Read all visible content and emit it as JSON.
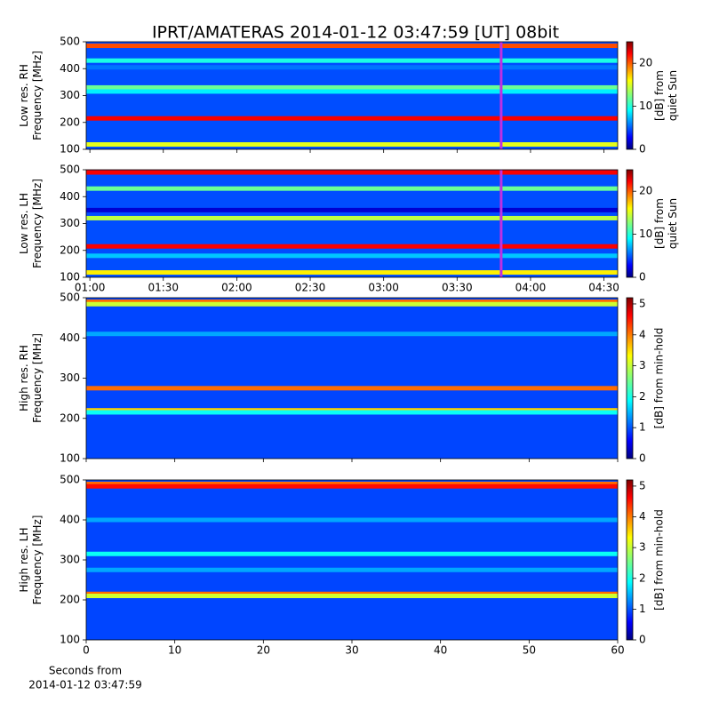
{
  "chart_data": [
    {
      "type": "spectrogram",
      "title": "IPRT/AMATERAS 2014-01-12 03:47:59 [UT]   08bit",
      "ylabel": [
        "Low res. RH",
        "Frequency [MHz]"
      ],
      "clabel": [
        "[dB] from",
        "quiet Sun"
      ],
      "xlim": [
        58.5,
        275.6
      ],
      "ylim": [
        100,
        500
      ],
      "yticks": [
        100,
        200,
        300,
        400,
        500
      ],
      "clim": [
        0,
        25
      ],
      "cticks": [
        0,
        10,
        20
      ],
      "background": 5,
      "bands": {
        "freq": [
          485,
          430,
          405,
          330,
          315,
          215,
          118
        ],
        "level": [
          20,
          10,
          6,
          12,
          9,
          22,
          15
        ]
      },
      "marker_x": 228,
      "marker_color": "#c030e0"
    },
    {
      "type": "spectrogram",
      "ylabel": [
        "Low res. LH",
        "Frequency [MHz]"
      ],
      "clabel": [
        "[dB] from",
        "quiet Sun"
      ],
      "xlim": [
        58.5,
        275.6
      ],
      "ylim": [
        100,
        500
      ],
      "yticks": [
        100,
        200,
        300,
        400,
        500
      ],
      "xticks": [
        {
          "value": 60,
          "label": "01:00"
        },
        {
          "value": 90,
          "label": "01:30"
        },
        {
          "value": 120,
          "label": "02:00"
        },
        {
          "value": 150,
          "label": "02:30"
        },
        {
          "value": 180,
          "label": "03:00"
        },
        {
          "value": 210,
          "label": "03:30"
        },
        {
          "value": 240,
          "label": "04:00"
        },
        {
          "value": 270,
          "label": "04:30"
        }
      ],
      "clim": [
        0,
        25
      ],
      "cticks": [
        0,
        10,
        20
      ],
      "background": 5,
      "bands": {
        "freq": [
          490,
          430,
          350,
          320,
          215,
          180,
          118
        ],
        "level": [
          22,
          12,
          2,
          14,
          22,
          8,
          16
        ]
      },
      "marker_x": 228,
      "marker_color": "#c030e0"
    },
    {
      "type": "spectrogram",
      "ylabel": [
        "High res. RH",
        "Frequency [MHz]"
      ],
      "clabel": [
        "[dB] from min-hold"
      ],
      "xlim": [
        0,
        60
      ],
      "ylim": [
        100,
        500
      ],
      "yticks": [
        100,
        200,
        300,
        400,
        500
      ],
      "clim": [
        0,
        5.2
      ],
      "cticks": [
        0,
        1,
        2,
        3,
        4,
        5
      ],
      "background": 1,
      "bands": {
        "freq": [
          490,
          484,
          410,
          275,
          220,
          215
        ],
        "level": [
          4,
          3,
          1.5,
          4,
          3.5,
          2
        ]
      }
    },
    {
      "type": "spectrogram",
      "ylabel": [
        "High res. LH",
        "Frequency [MHz]"
      ],
      "clabel": [
        "[dB] from min-hold"
      ],
      "xlabel": [
        "Seconds from",
        "2014-01-12 03:47:59"
      ],
      "xlim": [
        0,
        60
      ],
      "ylim": [
        100,
        500
      ],
      "yticks": [
        100,
        200,
        300,
        400,
        500
      ],
      "xticks": [
        0,
        10,
        20,
        30,
        40,
        50,
        60
      ],
      "clim": [
        0,
        5.2
      ],
      "cticks": [
        0,
        1,
        2,
        3,
        4,
        5
      ],
      "background": 1,
      "bands": {
        "freq": [
          490,
          484,
          400,
          315,
          275,
          215,
          210
        ],
        "level": [
          4,
          4.5,
          1.5,
          2,
          1.5,
          4,
          3
        ]
      }
    }
  ]
}
